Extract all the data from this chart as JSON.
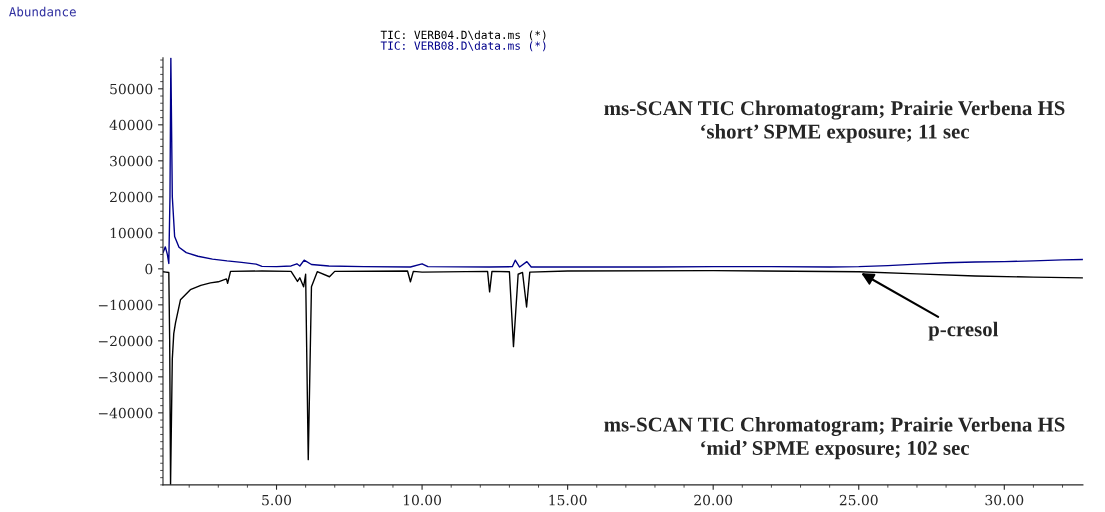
{
  "chart_data": {
    "type": "line",
    "ylabel": "Abundance",
    "series": [
      {
        "name": "TIC: VERB04.D\\data.ms (*)",
        "color": "#000000",
        "x": [
          1.1,
          1.2,
          1.3,
          1.33,
          1.36,
          1.42,
          1.47,
          1.53,
          1.7,
          2.04,
          2.4,
          2.73,
          3.0,
          3.28,
          3.32,
          3.42,
          4.5,
          5.5,
          5.72,
          5.8,
          5.93,
          6.0,
          6.09,
          6.2,
          6.4,
          6.82,
          7.0,
          9.5,
          9.6,
          9.7,
          10.0,
          12.25,
          12.32,
          12.4,
          13.0,
          13.14,
          13.3,
          13.45,
          13.59,
          13.7,
          15,
          20,
          25,
          27,
          29,
          31,
          32.7
        ],
        "values": [
          -800,
          -900,
          -1000,
          -20000,
          -60000,
          -25000,
          -18000,
          -15000,
          -8600,
          -5800,
          -4600,
          -3900,
          -3600,
          -2800,
          -4000,
          -700,
          -600,
          -700,
          -3500,
          -2500,
          -5000,
          -1500,
          -53000,
          -5000,
          -800,
          -2200,
          -700,
          -600,
          -3600,
          -700,
          -900,
          -700,
          -6400,
          -700,
          -800,
          -21600,
          -1500,
          -1000,
          -10600,
          -900,
          -600,
          -500,
          -800,
          -1400,
          -2000,
          -2300,
          -2500
        ]
      },
      {
        "name": "TIC: VERB08.D\\data.ms (*)",
        "color": "#00008b",
        "x": [
          1.1,
          1.18,
          1.25,
          1.3,
          1.34,
          1.37,
          1.42,
          1.5,
          1.65,
          1.9,
          2.3,
          2.8,
          3.3,
          3.8,
          4.3,
          4.5,
          5.0,
          5.5,
          5.7,
          5.8,
          5.95,
          6.2,
          6.8,
          8,
          9.6,
          10.0,
          10.2,
          12.3,
          13.1,
          13.2,
          13.35,
          13.6,
          13.75,
          15,
          18,
          20,
          22,
          24,
          25,
          26,
          27,
          28,
          29,
          30,
          31,
          32,
          32.7
        ],
        "values": [
          4500,
          6100,
          4000,
          1500,
          20000,
          58600,
          20000,
          9000,
          6000,
          4500,
          3500,
          2700,
          2200,
          1800,
          1300,
          700,
          600,
          800,
          1400,
          800,
          2400,
          1200,
          800,
          600,
          500,
          1400,
          600,
          500,
          600,
          2400,
          500,
          2000,
          500,
          500,
          500,
          600,
          600,
          500,
          600,
          900,
          1300,
          1700,
          1900,
          2000,
          2200,
          2500,
          2600
        ]
      }
    ],
    "xlim": [
      1.1,
      32.7
    ],
    "ylim": [
      -60000,
      58600
    ],
    "xticks": [
      {
        "value": 5,
        "label": "5.00"
      },
      {
        "value": 10,
        "label": "10.00"
      },
      {
        "value": 15,
        "label": "15.00"
      },
      {
        "value": 20,
        "label": "20.00"
      },
      {
        "value": 25,
        "label": "25.00"
      },
      {
        "value": 30,
        "label": "30.00"
      }
    ],
    "yticks": [
      -40000,
      -30000,
      -20000,
      -10000,
      0,
      10000,
      20000,
      30000,
      40000,
      50000
    ],
    "annotations": [
      "ms-SCAN TIC Chromatogram; Prairie Verbena HS\n‘short’ SPME exposure; 11 sec",
      "ms-SCAN TIC Chromatogram; Prairie Verbena HS\n‘mid’ SPME exposure; 102 sec",
      {
        "text": "p-cresol",
        "x": 25,
        "y": -800
      }
    ],
    "grid": false
  }
}
